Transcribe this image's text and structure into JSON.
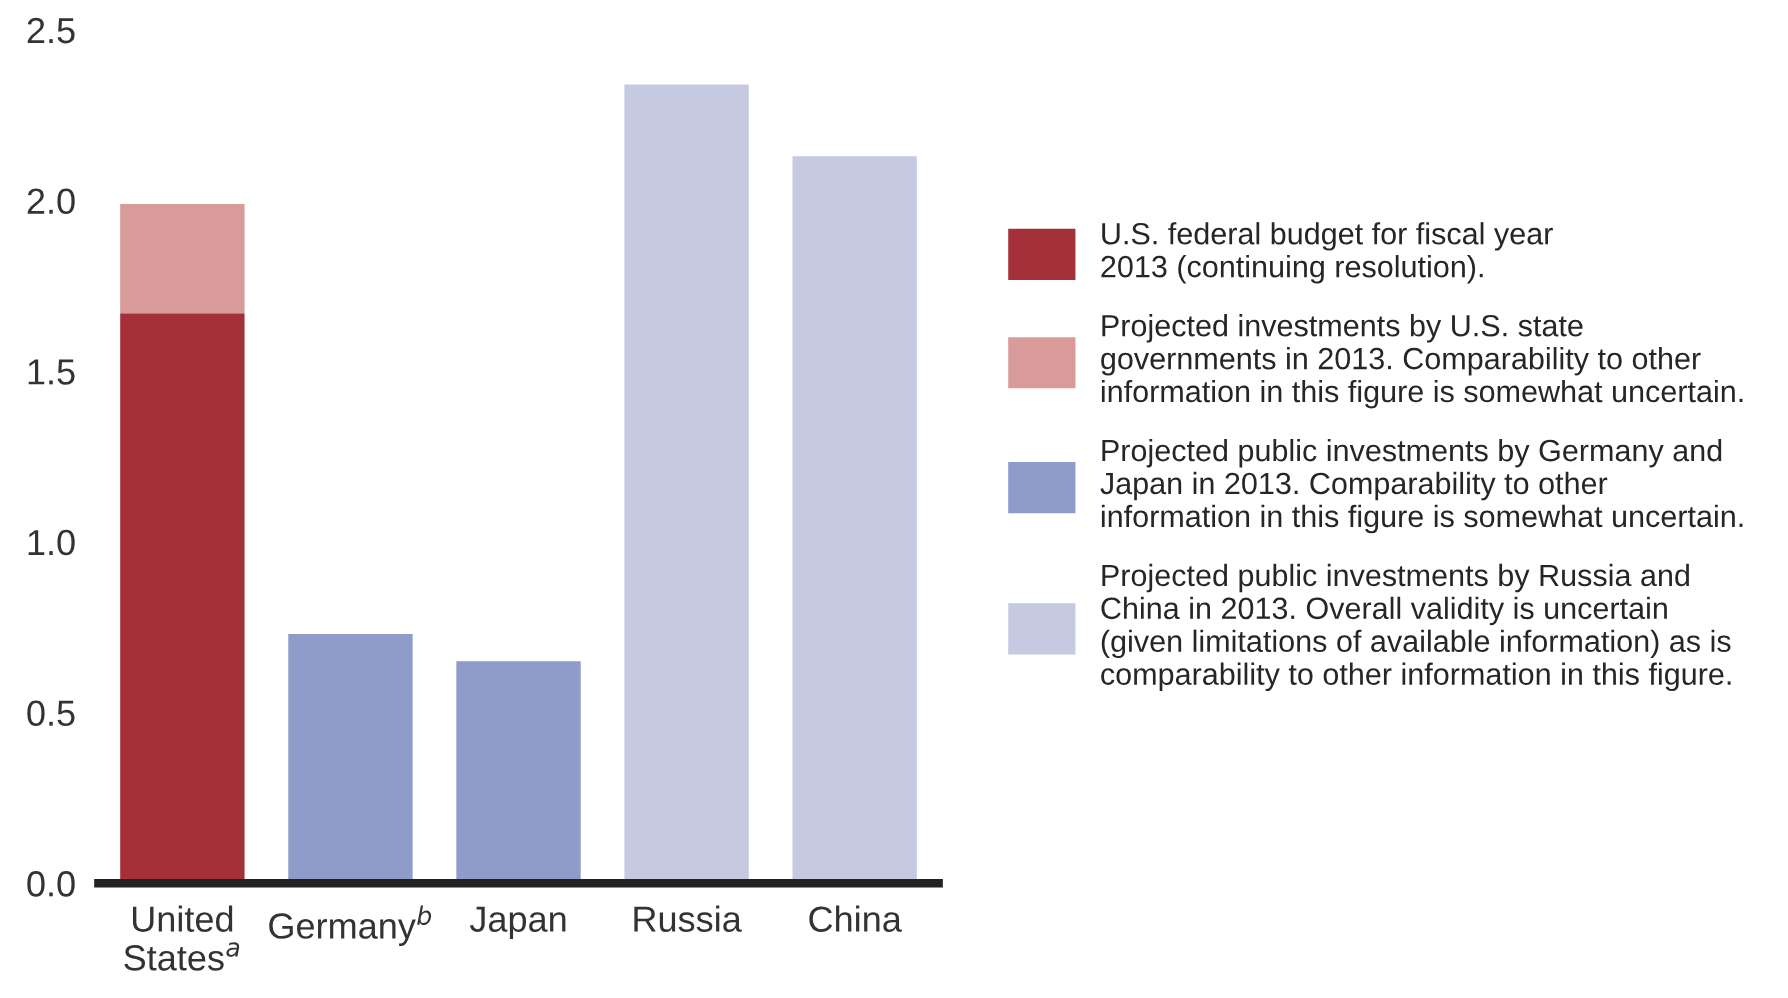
{
  "chart_data": {
    "type": "bar",
    "stacked": true,
    "categories": [
      "United\nStates$^{a}$",
      "Germany$^{b}$",
      "Japan",
      "Russia",
      "China"
    ],
    "series": [
      {
        "name": "U.S. federal budget for fiscal year\n2013 (continuing resolution).",
        "color": "#a4303a",
        "values": [
          1.67,
          null,
          null,
          null,
          null
        ]
      },
      {
        "name": "Projected investments by U.S. state\ngovernments in 2013. Comparability to other\ninformation in this figure is somewhat uncertain.",
        "color": "#d99a9a",
        "values": [
          0.32,
          null,
          null,
          null,
          null
        ]
      },
      {
        "name": "Projected public investments by Germany and\nJapan in 2013. Comparability to other\ninformation in this figure is somewhat uncertain.",
        "color": "#8f9bc8",
        "values": [
          null,
          0.73,
          0.65,
          null,
          null
        ]
      },
      {
        "name": "Projected public investments by Russia and\nChina in 2013. Overall validity is uncertain\n(given limitations of available information) as is\ncomparability to other information in this figure.",
        "color": "#c5c9e1",
        "values": [
          null,
          null,
          null,
          2.34,
          2.13
        ]
      }
    ],
    "ylim": [
      0,
      2.5
    ],
    "yticks": [
      {
        "value": 0,
        "label": "0.0"
      },
      {
        "value": 0.5,
        "label": "0.5"
      },
      {
        "value": 1.0,
        "label": "1.0"
      },
      {
        "value": 1.5,
        "label": "1.5"
      },
      {
        "value": 2.0,
        "label": "2.0"
      },
      {
        "value": 2.5,
        "label": "2.5"
      }
    ],
    "grid": false,
    "legend": "right"
  }
}
